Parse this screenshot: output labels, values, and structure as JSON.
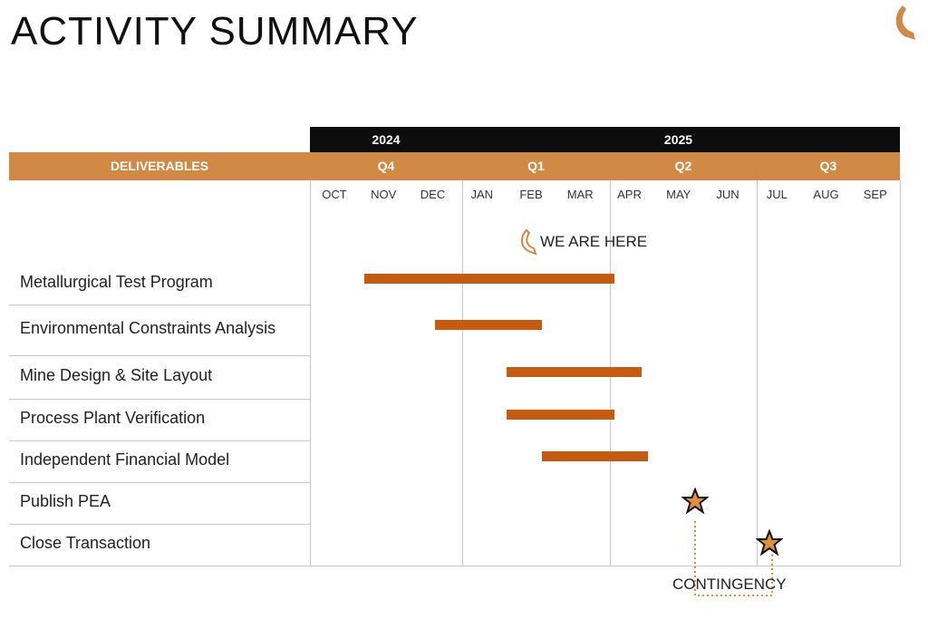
{
  "title": "ACTIVITY SUMMARY",
  "header": {
    "years": [
      "2024",
      "2025"
    ],
    "deliverables_label": "DELIVERABLES",
    "quarters": [
      "Q4",
      "Q1",
      "Q2",
      "Q3"
    ],
    "months": [
      "OCT",
      "NOV",
      "DEC",
      "JAN",
      "FEB",
      "MAR",
      "APR",
      "MAY",
      "JUN",
      "JUL",
      "AUG",
      "SEP"
    ]
  },
  "marker": {
    "label": "WE ARE HERE",
    "icon": "swoosh-arrow-icon",
    "month_position": 4.0
  },
  "contingency_label": "CONTINGENCY",
  "colors": {
    "bar": "#c55a11",
    "header": "#d08a45",
    "star": "#e0913a"
  },
  "chart_data": {
    "type": "gantt",
    "x_unit": "months from Oct 2024 start",
    "tasks": [
      {
        "name": "Metallurgical Test Program",
        "start": 1.1,
        "end": 6.2
      },
      {
        "name": "Environmental Constraints Analysis",
        "start": 2.55,
        "end": 4.72
      },
      {
        "name": "Mine Design & Site Layout",
        "start": 4.0,
        "end": 6.75
      },
      {
        "name": "Process Plant Verification",
        "start": 4.0,
        "end": 6.2
      },
      {
        "name": "Independent Financial Model",
        "start": 4.72,
        "end": 6.87
      },
      {
        "name": "Publish PEA",
        "milestone": 7.83
      },
      {
        "name": "Close Transaction",
        "milestone": 9.35
      }
    ]
  }
}
